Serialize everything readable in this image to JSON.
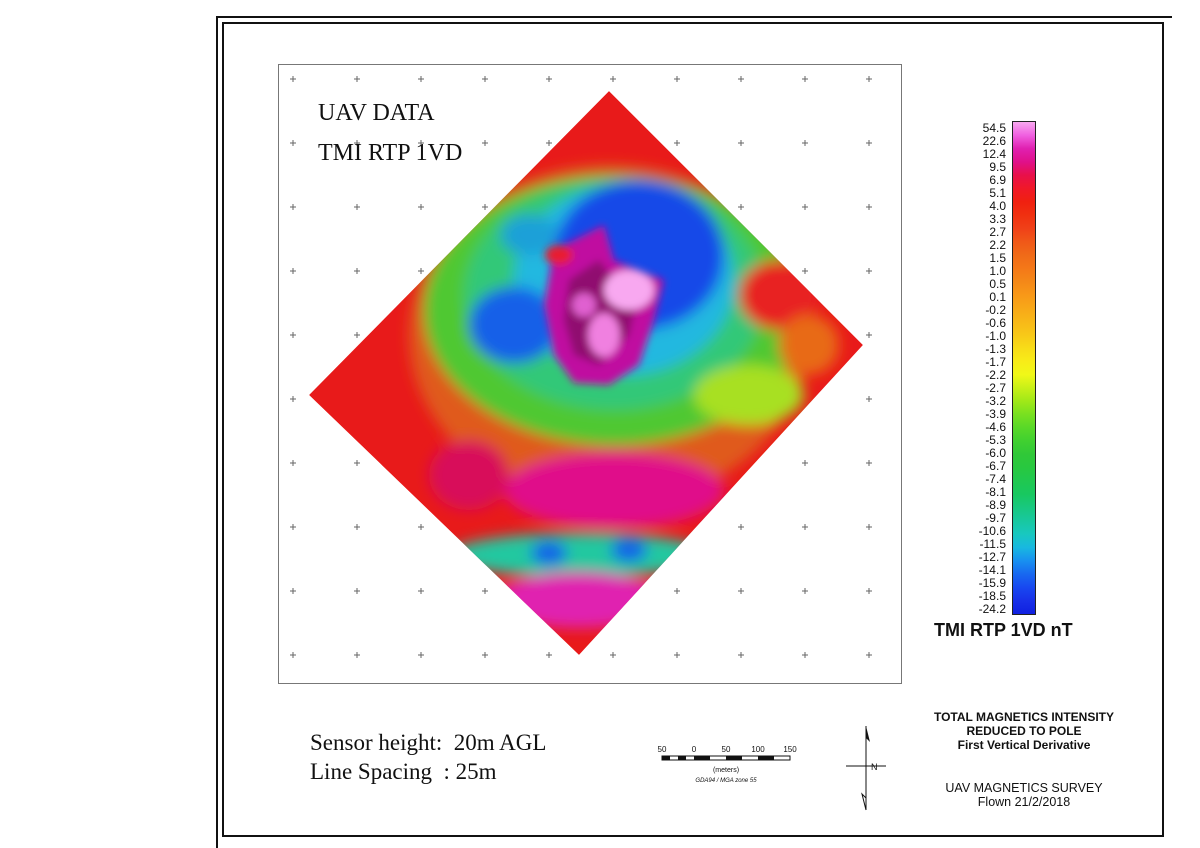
{
  "map_title": {
    "line1": "UAV DATA",
    "line2": "TMI RTP 1VD"
  },
  "legend": {
    "unit_title": "TMI RTP 1VD nT",
    "labels": [
      "54.5",
      "22.6",
      "12.4",
      "9.5",
      "6.9",
      "5.1",
      "4.0",
      "3.3",
      "2.7",
      "2.2",
      "1.5",
      "1.0",
      "0.5",
      "0.1",
      "-0.2",
      "-0.6",
      "-1.0",
      "-1.3",
      "-1.7",
      "-2.2",
      "-2.7",
      "-3.2",
      "-3.9",
      "-4.6",
      "-5.3",
      "-6.0",
      "-6.7",
      "-7.4",
      "-8.1",
      "-8.9",
      "-9.7",
      "-10.6",
      "-11.5",
      "-12.7",
      "-14.1",
      "-15.9",
      "-18.5",
      "-24.2"
    ],
    "colors_top_to_bottom": [
      "#f8a8f0",
      "#f060e0",
      "#e020b0",
      "#e0108a",
      "#e8104a",
      "#f01828",
      "#f02010",
      "#f03010",
      "#f04018",
      "#f05818",
      "#f06a18",
      "#f47818",
      "#f48818",
      "#f89818",
      "#f8a818",
      "#f8b818",
      "#f8c818",
      "#f8dc18",
      "#f8ec18",
      "#f0f818",
      "#c8f018",
      "#a0e818",
      "#78e020",
      "#58d828",
      "#40d030",
      "#30c838",
      "#28c840",
      "#20c850",
      "#18c860",
      "#18c880",
      "#18c8a0",
      "#18c8c0",
      "#18b8e0",
      "#1890f0",
      "#1868f0",
      "#1848f0",
      "#1830e8",
      "#1020e0"
    ]
  },
  "sensor": {
    "height_line": "Sensor height:  20m AGL",
    "spacing_line": "Line Spacing  : 25m"
  },
  "scale_bar": {
    "ticks": [
      "50",
      "0",
      "50",
      "100",
      "150"
    ],
    "unit": "(meters)",
    "projection": "GDA94 / MGA zone 55"
  },
  "north_arrow": {
    "label": "N"
  },
  "title_block": {
    "line1": "TOTAL MAGNETICS INTENSITY",
    "line2": "REDUCED TO POLE",
    "line3": "First Vertical Derivative",
    "survey": "UAV MAGNETICS SURVEY",
    "flown": "Flown 21/2/2018"
  },
  "colors": {
    "frame": "#111111",
    "grid_cross": "#666666"
  }
}
